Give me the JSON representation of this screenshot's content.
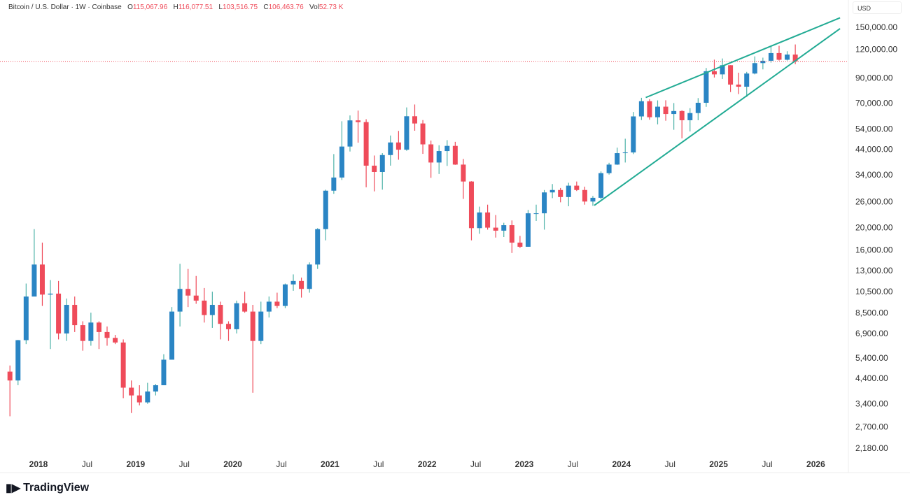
{
  "legend": {
    "symbol": "Bitcoin / U.S. Dollar · 1W · Coinbase",
    "o_label": "O",
    "o": "115,067.96",
    "h_label": "H",
    "h": "116,077.51",
    "l_label": "L",
    "l": "103,516.75",
    "c_label": "C",
    "c": "106,463.76",
    "vol_label": "Vol",
    "vol": "52.73 K"
  },
  "currency": "USD",
  "brand": "TradingView",
  "colors": {
    "up_body": "#2a85c4",
    "up_wick": "#4fb3a9",
    "down": "#ef4b5a",
    "trendline": "#22ab94",
    "price_line": "#ef4b5a"
  },
  "chart_data": {
    "type": "candlestick",
    "scale": "log",
    "ylim": [
      2000,
      175000
    ],
    "xlim": [
      2017.64,
      2026.45
    ],
    "y_ticks": [
      150000,
      120000,
      90000,
      70000,
      54000,
      44000,
      34000,
      26000,
      20000,
      16000,
      13000,
      10500,
      8500,
      6900,
      5400,
      4400,
      3400,
      2700,
      2180
    ],
    "y_tick_labels": [
      "150,000.00",
      "120,000.00",
      "90,000.00",
      "70,000.00",
      "54,000.00",
      "44,000.00",
      "34,000.00",
      "26,000.00",
      "20,000.00",
      "16,000.00",
      "13,000.00",
      "10,500.00",
      "8,500.00",
      "6,900.00",
      "5,400.00",
      "4,400.00",
      "3,400.00",
      "2,700.00",
      "2,180.00"
    ],
    "x_ticks": [
      {
        "t": 2018.0,
        "label": "2018",
        "bold": true
      },
      {
        "t": 2018.5,
        "label": "Jul"
      },
      {
        "t": 2019.0,
        "label": "2019",
        "bold": true
      },
      {
        "t": 2019.5,
        "label": "Jul"
      },
      {
        "t": 2020.0,
        "label": "2020",
        "bold": true
      },
      {
        "t": 2020.5,
        "label": "Jul"
      },
      {
        "t": 2021.0,
        "label": "2021",
        "bold": true
      },
      {
        "t": 2021.5,
        "label": "Jul"
      },
      {
        "t": 2022.0,
        "label": "2022",
        "bold": true
      },
      {
        "t": 2022.5,
        "label": "Jul"
      },
      {
        "t": 2023.0,
        "label": "2023",
        "bold": true
      },
      {
        "t": 2023.5,
        "label": "Jul"
      },
      {
        "t": 2024.0,
        "label": "2024",
        "bold": true
      },
      {
        "t": 2024.5,
        "label": "Jul"
      },
      {
        "t": 2025.0,
        "label": "2025",
        "bold": true
      },
      {
        "t": 2025.5,
        "label": "Jul"
      },
      {
        "t": 2026.0,
        "label": "2026",
        "bold": true
      }
    ],
    "start": 2017.67,
    "period_years": 0.08333,
    "first_open": 4700,
    "close": [
      4300,
      6450,
      10000,
      13800,
      10200,
      10300,
      6900,
      9200,
      7500,
      6400,
      7700,
      7000,
      6600,
      6300,
      4000,
      3700,
      3450,
      3850,
      4100,
      5300,
      8600,
      10800,
      10100,
      9600,
      8300,
      9200,
      7600,
      7200,
      9350,
      8600,
      6400,
      8600,
      9500,
      9100,
      11300,
      11700,
      10800,
      13800,
      19700,
      29000,
      33100,
      45200,
      58800,
      57800,
      37300,
      35000,
      41500,
      47100,
      43800,
      61300,
      57000,
      46200,
      38500,
      43200,
      45500,
      37700,
      31800,
      19900,
      23300,
      20000,
      19400,
      20500,
      17200,
      16500,
      23100,
      23100,
      28500,
      29200,
      27200,
      30500,
      29200,
      26000,
      27000,
      34600,
      37700,
      42300,
      42600,
      61200,
      71300,
      60700,
      67500,
      62700,
      64600,
      58900,
      63300,
      70200,
      96400,
      93400,
      102400,
      84300,
      82500,
      94200,
      104600,
      107100,
      115700,
      108200,
      114000,
      106463
    ],
    "high": [
      5000,
      6470,
      11400,
      19700,
      17200,
      11800,
      11700,
      9800,
      10000,
      7800,
      8500,
      7800,
      7400,
      6800,
      6500,
      4300,
      4100,
      4200,
      4150,
      5600,
      9000,
      13900,
      13200,
      12300,
      10900,
      10500,
      9500,
      7800,
      9600,
      10500,
      9200,
      9500,
      10000,
      10400,
      11400,
      12500,
      12100,
      14100,
      19900,
      29300,
      41900,
      58300,
      61800,
      64900,
      59500,
      41300,
      42300,
      50500,
      52900,
      67000,
      69000,
      59000,
      48000,
      45800,
      48200,
      47400,
      39900,
      31900,
      24700,
      25200,
      22700,
      21000,
      21500,
      18400,
      23900,
      25200,
      29200,
      31000,
      29800,
      31400,
      31800,
      30200,
      27500,
      35200,
      38400,
      44700,
      48900,
      64000,
      73800,
      72800,
      71900,
      72000,
      70000,
      65100,
      66500,
      73600,
      99600,
      108300,
      109600,
      102500,
      95000,
      95800,
      111900,
      110500,
      123200,
      124500,
      117900,
      126200
    ],
    "low": [
      3000,
      4100,
      6200,
      10400,
      9100,
      5900,
      6500,
      6400,
      7000,
      5800,
      6100,
      5900,
      6100,
      6200,
      3600,
      3100,
      3350,
      3400,
      3700,
      4100,
      5300,
      7400,
      9000,
      9300,
      7700,
      7300,
      6500,
      6400,
      6900,
      8500,
      3800,
      6200,
      8100,
      8900,
      8900,
      10600,
      9900,
      10400,
      13200,
      17600,
      28100,
      32300,
      43000,
      47000,
      30000,
      28800,
      29300,
      37300,
      39600,
      43300,
      53000,
      42000,
      33000,
      34300,
      37200,
      37600,
      26700,
      17600,
      18800,
      19600,
      18100,
      18200,
      15500,
      16300,
      16500,
      21400,
      19600,
      26900,
      25800,
      24800,
      28900,
      25200,
      24900,
      26600,
      34100,
      37600,
      38500,
      41900,
      59000,
      59200,
      56500,
      58600,
      53500,
      49100,
      52600,
      58900,
      67400,
      90500,
      89200,
      78200,
      76600,
      74400,
      93400,
      98200,
      105100,
      107300,
      107300,
      103500
    ],
    "last_price": 106463.76,
    "trendlines": [
      {
        "name": "wedge-upper",
        "from": [
          2024.25,
          74000
        ],
        "to": [
          2026.25,
          165000
        ]
      },
      {
        "name": "wedge-lower",
        "from": [
          2023.72,
          25000
        ],
        "to": [
          2026.25,
          148000
        ]
      }
    ]
  }
}
